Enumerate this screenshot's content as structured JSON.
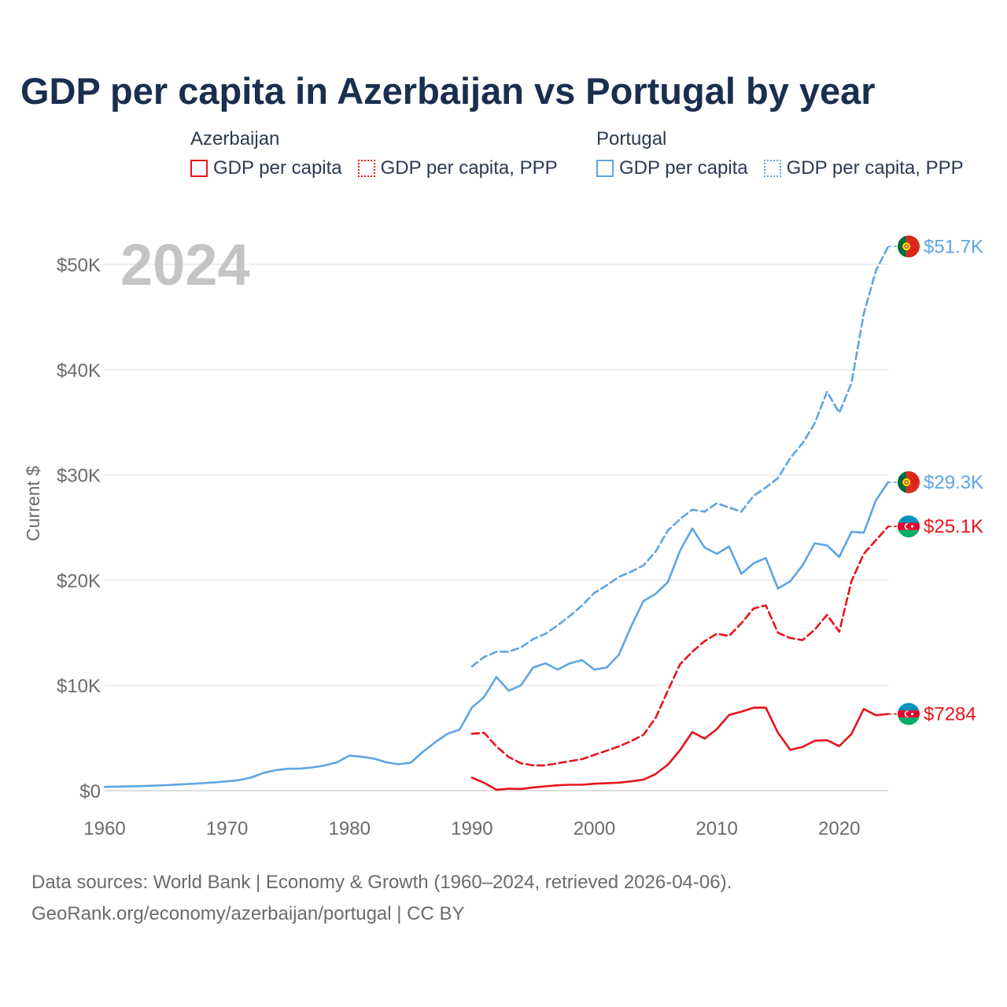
{
  "title": "GDP per capita in Azerbaijan vs Portugal by year",
  "legend": {
    "groups": [
      {
        "country": "Azerbaijan",
        "color": "#e8141b",
        "solid_label": "GDP per capita",
        "ppp_label": "GDP per capita, PPP"
      },
      {
        "country": "Portugal",
        "color": "#5ea5e3",
        "solid_label": "GDP per capita",
        "ppp_label": "GDP per capita, PPP"
      }
    ]
  },
  "chart_data": {
    "type": "line",
    "title": "GDP per capita in Azerbaijan vs Portugal by year",
    "year_label": "2024",
    "xlabel": "",
    "ylabel": "Current $",
    "xlim": [
      1960,
      2024
    ],
    "ylim": [
      0,
      52000
    ],
    "x_ticks": [
      1960,
      1970,
      1980,
      1990,
      2000,
      2010,
      2020
    ],
    "y_ticks": [
      {
        "value": 0,
        "label": "$0"
      },
      {
        "value": 10000,
        "label": "$10K"
      },
      {
        "value": 20000,
        "label": "$20K"
      },
      {
        "value": 30000,
        "label": "$30K"
      },
      {
        "value": 40000,
        "label": "$40K"
      },
      {
        "value": 50000,
        "label": "$50K"
      }
    ],
    "grid": true,
    "series": [
      {
        "name": "Portugal GDP per capita, PPP",
        "country": "Portugal",
        "dash": "dashed",
        "color": "#5ea5e3",
        "end_label": "$51.7K",
        "flag": "portugal",
        "x": [
          1990,
          1991,
          1992,
          1993,
          1994,
          1995,
          1996,
          1997,
          1998,
          1999,
          2000,
          2001,
          2002,
          2003,
          2004,
          2005,
          2006,
          2007,
          2008,
          2009,
          2010,
          2011,
          2012,
          2013,
          2014,
          2015,
          2016,
          2017,
          2018,
          2019,
          2020,
          2021,
          2022,
          2023,
          2024
        ],
        "values": [
          11800,
          12700,
          13200,
          13200,
          13600,
          14400,
          14900,
          15700,
          16600,
          17600,
          18800,
          19500,
          20300,
          20800,
          21400,
          22700,
          24700,
          25800,
          26700,
          26500,
          27300,
          26900,
          26500,
          28000,
          28800,
          29700,
          31600,
          33000,
          34900,
          37900,
          35900,
          38700,
          45300,
          49400,
          51700
        ]
      },
      {
        "name": "Portugal GDP per capita",
        "country": "Portugal",
        "dash": "solid",
        "color": "#5ea5e3",
        "end_label": "$29.3K",
        "flag": "portugal",
        "x": [
          1960,
          1961,
          1962,
          1963,
          1964,
          1965,
          1966,
          1967,
          1968,
          1969,
          1970,
          1971,
          1972,
          1973,
          1974,
          1975,
          1976,
          1977,
          1978,
          1979,
          1980,
          1981,
          1982,
          1983,
          1984,
          1985,
          1986,
          1987,
          1988,
          1989,
          1990,
          1991,
          1992,
          1993,
          1994,
          1995,
          1996,
          1997,
          1998,
          1999,
          2000,
          2001,
          2002,
          2003,
          2004,
          2005,
          2006,
          2007,
          2008,
          2009,
          2010,
          2011,
          2012,
          2013,
          2014,
          2015,
          2016,
          2017,
          2018,
          2019,
          2020,
          2021,
          2022,
          2023,
          2024
        ],
        "values": [
          360,
          380,
          400,
          430,
          470,
          520,
          580,
          640,
          710,
          790,
          880,
          1000,
          1260,
          1700,
          1950,
          2080,
          2100,
          2210,
          2400,
          2700,
          3330,
          3220,
          3040,
          2700,
          2500,
          2650,
          3700,
          4600,
          5400,
          5800,
          7900,
          8900,
          10800,
          9500,
          10000,
          11700,
          12100,
          11500,
          12100,
          12400,
          11500,
          11700,
          12900,
          15600,
          18000,
          18700,
          19800,
          22800,
          24900,
          23100,
          22500,
          23200,
          20600,
          21600,
          22100,
          19200,
          19900,
          21400,
          23500,
          23300,
          22200,
          24600,
          24500,
          27600,
          29300
        ]
      },
      {
        "name": "Azerbaijan GDP per capita, PPP",
        "country": "Azerbaijan",
        "dash": "dashed",
        "color": "#e8141b",
        "end_label": "$25.1K",
        "flag": "azerbaijan",
        "x": [
          1990,
          1991,
          1992,
          1993,
          1994,
          1995,
          1996,
          1997,
          1998,
          1999,
          2000,
          2001,
          2002,
          2003,
          2004,
          2005,
          2006,
          2007,
          2008,
          2009,
          2010,
          2011,
          2012,
          2013,
          2014,
          2015,
          2016,
          2017,
          2018,
          2019,
          2020,
          2021,
          2022,
          2023,
          2024
        ],
        "values": [
          5400,
          5500,
          4200,
          3200,
          2600,
          2400,
          2400,
          2600,
          2800,
          3000,
          3400,
          3800,
          4200,
          4700,
          5300,
          6900,
          9500,
          12000,
          13200,
          14200,
          14900,
          14700,
          15900,
          17300,
          17600,
          15000,
          14500,
          14300,
          15300,
          16700,
          15100,
          19900,
          22500,
          23800,
          25100
        ]
      },
      {
        "name": "Azerbaijan GDP per capita",
        "country": "Azerbaijan",
        "dash": "solid",
        "color": "#e8141b",
        "end_label": "$7284",
        "flag": "azerbaijan",
        "x": [
          1990,
          1991,
          1992,
          1993,
          1994,
          1995,
          1996,
          1997,
          1998,
          1999,
          2000,
          2001,
          2002,
          2003,
          2004,
          2005,
          2006,
          2007,
          2008,
          2009,
          2010,
          2011,
          2012,
          2013,
          2014,
          2015,
          2016,
          2017,
          2018,
          2019,
          2020,
          2021,
          2022,
          2023,
          2024
        ],
        "values": [
          1240,
          740,
          80,
          190,
          160,
          310,
          410,
          510,
          560,
          570,
          660,
          700,
          760,
          880,
          1040,
          1580,
          2470,
          3850,
          5570,
          4950,
          5840,
          7190,
          7500,
          7880,
          7890,
          5500,
          3880,
          4150,
          4740,
          4800,
          4230,
          5390,
          7760,
          7160,
          7284
        ]
      }
    ]
  },
  "footer": {
    "line1": "Data sources: World Bank | Economy & Growth (1960–2024, retrieved 2026-04-06).",
    "line2": "GeoRank.org/economy/azerbaijan/portugal | CC BY"
  }
}
